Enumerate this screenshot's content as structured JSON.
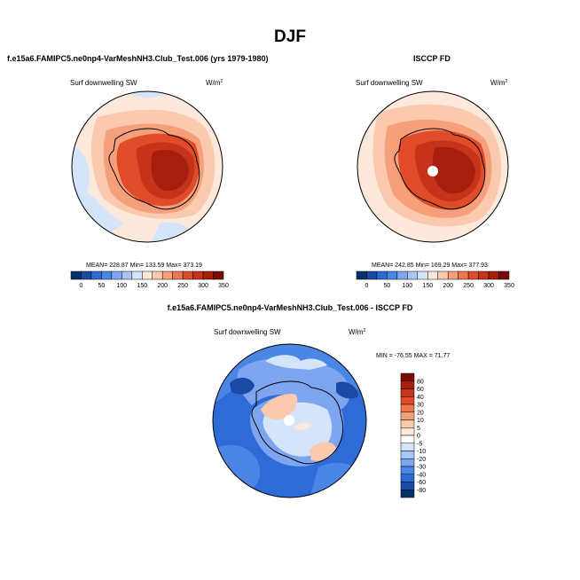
{
  "page": {
    "title": "DJF"
  },
  "panels": [
    {
      "id": "model",
      "title": "f.e15a6.FAMIPC5.ne0np4-VarMeshNH3.Club_Test.006 (yrs 1979-1980)",
      "variable": "Surf downwelling SW",
      "units_base": "W/m",
      "units_exp": "2",
      "stats_text": "MEAN= 228.87  Min= 133.59  Max= 373.19",
      "stats": {
        "mean": 228.87,
        "min": 133.59,
        "max": 373.19
      }
    },
    {
      "id": "obs",
      "title": "ISCCP FD",
      "variable": "Surf downwelling SW",
      "units_base": "W/m",
      "units_exp": "2",
      "stats_text": "MEAN= 242.85  Min= 169.29  Max= 377.93",
      "stats": {
        "mean": 242.85,
        "min": 169.29,
        "max": 377.93
      }
    },
    {
      "id": "diff",
      "title": "f.e15a6.FAMIPC5.ne0np4-VarMeshNH3.Club_Test.006 - ISCCP FD",
      "variable": "Surf downwelling SW",
      "units_base": "W/m",
      "units_exp": "2",
      "stats_text": "MIN = -76.55 MAX =  71.77",
      "stats": {
        "min": -76.55,
        "max": 71.77
      }
    }
  ],
  "colorbar_abs": {
    "colors": [
      "#08306b",
      "#1a4aa6",
      "#2f6bd6",
      "#4a86e6",
      "#7ea6f0",
      "#a9c6f6",
      "#d4e4fb",
      "#fde8dc",
      "#fbc9ad",
      "#f6a07b",
      "#ee7650",
      "#e04c2a",
      "#c6321a",
      "#a51f0c",
      "#7a0c04"
    ],
    "tick_labels": [
      "0",
      "50",
      "100",
      "150",
      "200",
      "250",
      "300",
      "350"
    ]
  },
  "colorbar_diff": {
    "colors": [
      "#7a0c04",
      "#a51f0c",
      "#c6321a",
      "#e04c2a",
      "#ee7650",
      "#f6a07b",
      "#fbc9ad",
      "#fde8dc",
      "#ffffff",
      "#d4e4fb",
      "#a9c6f6",
      "#7ea6f0",
      "#4a86e6",
      "#2f6bd6",
      "#1a4aa6",
      "#08306b"
    ],
    "tick_labels": [
      "80",
      "60",
      "40",
      "30",
      "20",
      "10",
      "5",
      "0",
      "-5",
      "-10",
      "-20",
      "-30",
      "-40",
      "-60",
      "-80"
    ]
  },
  "map_colors": {
    "ocean_low": "#d4e4fb",
    "ocean_mid": "#fde8dc",
    "ocean_warm": "#fbc9ad",
    "ice_edge": "#ee7650",
    "ice_mid": "#e04c2a",
    "ice_high": "#c6321a",
    "ice_core": "#a51f0c",
    "diff_neg_strong": "#2f6bd6",
    "diff_neg": "#7ea6f0",
    "diff_near_zero": "#d4e4fb",
    "diff_pos": "#fbc9ad"
  }
}
